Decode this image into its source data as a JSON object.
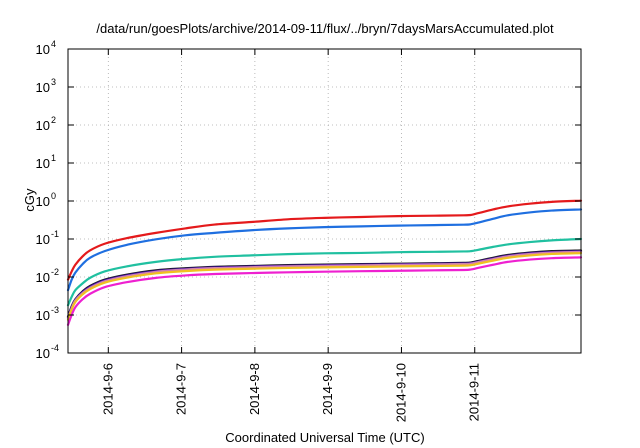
{
  "chart_data": {
    "type": "line",
    "title": "/data/run/goesPlots/archive/2014-09-11/flux/../bryn/7daysMarsAccumulated.plot",
    "xlabel": "Coordinated Universal Time (UTC)",
    "ylabel": "cGy",
    "yscale": "log",
    "ylim": [
      0.0001,
      10000
    ],
    "xlim": [
      0.0,
      7.0
    ],
    "x_ticks": [
      {
        "x": 0.55,
        "label": "2014-9-6"
      },
      {
        "x": 1.55,
        "label": "2014-9-7"
      },
      {
        "x": 2.55,
        "label": "2014-9-8"
      },
      {
        "x": 3.55,
        "label": "2014-9-9"
      },
      {
        "x": 4.55,
        "label": "2014-9-10"
      },
      {
        "x": 5.55,
        "label": "2014-9-11"
      }
    ],
    "y_ticks": [
      {
        "exp": -4,
        "value": 0.0001
      },
      {
        "exp": -3,
        "value": 0.001
      },
      {
        "exp": -2,
        "value": 0.01
      },
      {
        "exp": -1,
        "value": 0.1
      },
      {
        "exp": 0,
        "value": 1
      },
      {
        "exp": 1,
        "value": 10
      },
      {
        "exp": 2,
        "value": 100
      },
      {
        "exp": 3,
        "value": 1000
      },
      {
        "exp": 4,
        "value": 10000
      }
    ],
    "grid": true,
    "x": [
      0.0,
      0.05,
      0.1,
      0.2,
      0.3,
      0.5,
      0.8,
      1.2,
      1.6,
      2.0,
      2.5,
      3.0,
      3.5,
      4.0,
      4.5,
      5.0,
      5.4,
      5.5,
      5.6,
      5.8,
      6.0,
      6.3,
      6.6,
      7.0
    ],
    "series": [
      {
        "color": "#e41a1c",
        "values": [
          0.0085,
          0.014,
          0.021,
          0.035,
          0.05,
          0.075,
          0.105,
          0.145,
          0.19,
          0.24,
          0.28,
          0.33,
          0.36,
          0.38,
          0.4,
          0.41,
          0.42,
          0.43,
          0.48,
          0.6,
          0.72,
          0.85,
          0.95,
          1.02
        ]
      },
      {
        "color": "#1f6fe0",
        "values": [
          0.0045,
          0.0085,
          0.013,
          0.022,
          0.032,
          0.048,
          0.07,
          0.098,
          0.125,
          0.145,
          0.17,
          0.19,
          0.205,
          0.215,
          0.225,
          0.232,
          0.238,
          0.245,
          0.27,
          0.34,
          0.42,
          0.5,
          0.56,
          0.6
        ]
      },
      {
        "color": "#20c0a0",
        "values": [
          0.0018,
          0.003,
          0.0045,
          0.0068,
          0.0095,
          0.014,
          0.019,
          0.025,
          0.03,
          0.034,
          0.037,
          0.04,
          0.042,
          0.043,
          0.045,
          0.046,
          0.047,
          0.048,
          0.052,
          0.062,
          0.072,
          0.083,
          0.092,
          0.1
        ]
      },
      {
        "color": "#1a1a1a",
        "values": [
          0.0009,
          0.0017,
          0.0026,
          0.0042,
          0.0058,
          0.0085,
          0.0115,
          0.015,
          0.017,
          0.0185,
          0.0195,
          0.0205,
          0.0212,
          0.0218,
          0.0224,
          0.023,
          0.0235,
          0.0242,
          0.0265,
          0.032,
          0.038,
          0.044,
          0.048,
          0.05
        ]
      },
      {
        "color": "#3a0aa8",
        "values": [
          0.00085,
          0.0016,
          0.0025,
          0.004,
          0.0055,
          0.0081,
          0.011,
          0.0143,
          0.0163,
          0.0178,
          0.0188,
          0.0197,
          0.0204,
          0.021,
          0.0216,
          0.0222,
          0.0227,
          0.0233,
          0.0255,
          0.0305,
          0.0362,
          0.042,
          0.0455,
          0.0475
        ]
      },
      {
        "color": "#d080b0",
        "values": [
          0.0008,
          0.0015,
          0.0024,
          0.0038,
          0.0052,
          0.0077,
          0.0105,
          0.0137,
          0.0157,
          0.0171,
          0.0181,
          0.019,
          0.0197,
          0.0203,
          0.0209,
          0.0215,
          0.022,
          0.0226,
          0.0247,
          0.0295,
          0.035,
          0.0405,
          0.044,
          0.046
        ]
      },
      {
        "color": "#f0c020",
        "values": [
          0.00075,
          0.0014,
          0.0022,
          0.0035,
          0.0048,
          0.0071,
          0.0096,
          0.0125,
          0.0143,
          0.0156,
          0.0165,
          0.0173,
          0.0179,
          0.0185,
          0.019,
          0.0195,
          0.0199,
          0.0205,
          0.0225,
          0.027,
          0.032,
          0.037,
          0.0405,
          0.0425
        ]
      },
      {
        "color": "#ee20d0",
        "values": [
          0.00055,
          0.001,
          0.0016,
          0.0026,
          0.0036,
          0.0054,
          0.0073,
          0.0095,
          0.011,
          0.012,
          0.0127,
          0.0133,
          0.0138,
          0.0142,
          0.0146,
          0.015,
          0.0153,
          0.0158,
          0.0174,
          0.021,
          0.025,
          0.0288,
          0.0313,
          0.0328
        ]
      }
    ]
  }
}
